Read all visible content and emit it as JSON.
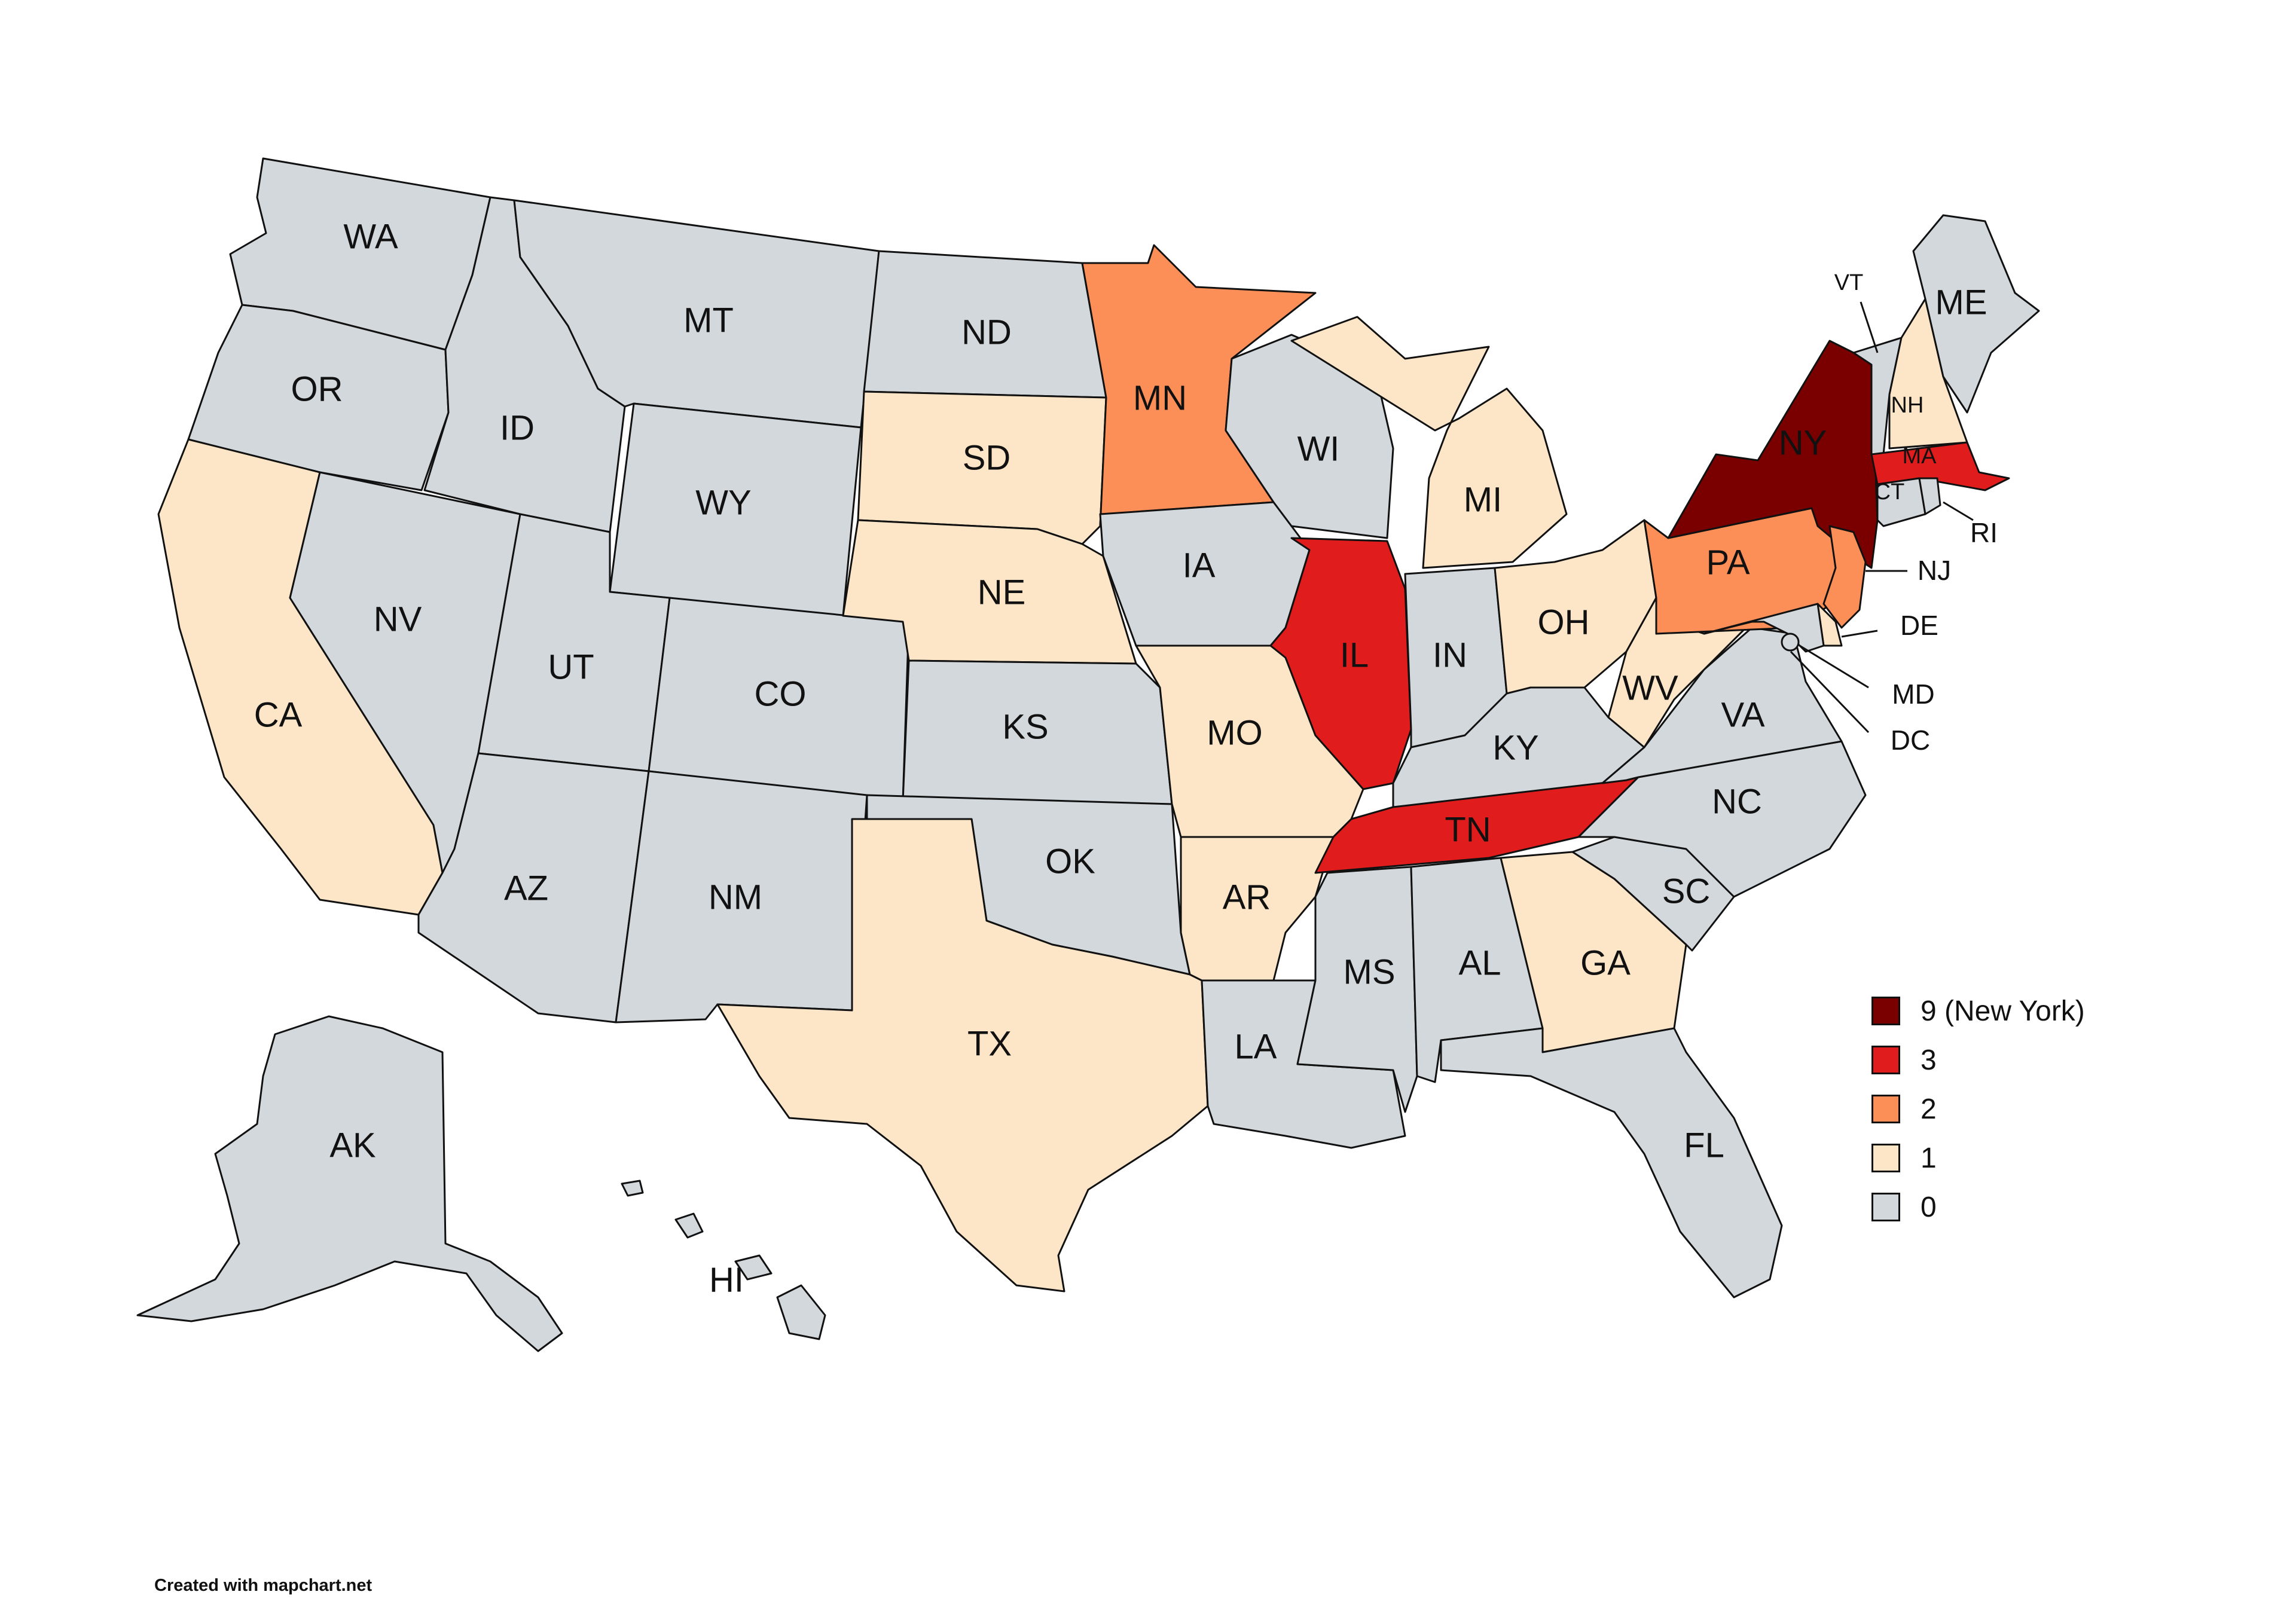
{
  "colors": {
    "c9": "#7a0000",
    "c3": "#e11c1c",
    "c2": "#fb8f57",
    "c1": "#fde6c8",
    "c0": "#d2d8dc"
  },
  "states": {
    "WA": {
      "label": "WA",
      "level": "c0"
    },
    "OR": {
      "label": "OR",
      "level": "c0"
    },
    "CA": {
      "label": "CA",
      "level": "c1"
    },
    "NV": {
      "label": "NV",
      "level": "c0"
    },
    "ID": {
      "label": "ID",
      "level": "c0"
    },
    "MT": {
      "label": "MT",
      "level": "c0"
    },
    "WY": {
      "label": "WY",
      "level": "c0"
    },
    "UT": {
      "label": "UT",
      "level": "c0"
    },
    "AZ": {
      "label": "AZ",
      "level": "c0"
    },
    "CO": {
      "label": "CO",
      "level": "c0"
    },
    "NM": {
      "label": "NM",
      "level": "c0"
    },
    "ND": {
      "label": "ND",
      "level": "c0"
    },
    "SD": {
      "label": "SD",
      "level": "c1"
    },
    "NE": {
      "label": "NE",
      "level": "c1"
    },
    "KS": {
      "label": "KS",
      "level": "c0"
    },
    "OK": {
      "label": "OK",
      "level": "c0"
    },
    "TX": {
      "label": "TX",
      "level": "c1"
    },
    "MN": {
      "label": "MN",
      "level": "c2"
    },
    "IA": {
      "label": "IA",
      "level": "c0"
    },
    "MO": {
      "label": "MO",
      "level": "c1"
    },
    "AR": {
      "label": "AR",
      "level": "c1"
    },
    "LA": {
      "label": "LA",
      "level": "c0"
    },
    "WI": {
      "label": "WI",
      "level": "c0"
    },
    "IL": {
      "label": "IL",
      "level": "c3"
    },
    "MI": {
      "label": "MI",
      "level": "c1"
    },
    "IN": {
      "label": "IN",
      "level": "c0"
    },
    "OH": {
      "label": "OH",
      "level": "c1"
    },
    "KY": {
      "label": "KY",
      "level": "c0"
    },
    "TN": {
      "label": "TN",
      "level": "c3"
    },
    "MS": {
      "label": "MS",
      "level": "c0"
    },
    "AL": {
      "label": "AL",
      "level": "c0"
    },
    "GA": {
      "label": "GA",
      "level": "c1"
    },
    "FL": {
      "label": "FL",
      "level": "c0"
    },
    "SC": {
      "label": "SC",
      "level": "c0"
    },
    "NC": {
      "label": "NC",
      "level": "c0"
    },
    "VA": {
      "label": "VA",
      "level": "c0"
    },
    "WV": {
      "label": "WV",
      "level": "c1"
    },
    "PA": {
      "label": "PA",
      "level": "c2"
    },
    "NY": {
      "label": "NY",
      "level": "c9"
    },
    "VT": {
      "label": "VT",
      "level": "c0"
    },
    "NH": {
      "label": "NH",
      "level": "c1"
    },
    "ME": {
      "label": "ME",
      "level": "c0"
    },
    "MA": {
      "label": "MA",
      "level": "c3"
    },
    "CT": {
      "label": "CT",
      "level": "c0"
    },
    "RI": {
      "label": "RI",
      "level": "c0"
    },
    "NJ": {
      "label": "NJ",
      "level": "c2"
    },
    "DE": {
      "label": "DE",
      "level": "c1"
    },
    "MD": {
      "label": "MD",
      "level": "c0"
    },
    "DC": {
      "label": "DC",
      "level": "c0"
    },
    "AK": {
      "label": "AK",
      "level": "c0"
    },
    "HI": {
      "label": "HI",
      "level": "c0"
    }
  },
  "legend": [
    {
      "label": "9 (New York)",
      "level": "c9"
    },
    {
      "label": "3",
      "level": "c3"
    },
    {
      "label": "2",
      "level": "c2"
    },
    {
      "label": "1",
      "level": "c1"
    },
    {
      "label": "0",
      "level": "c0"
    }
  ],
  "credit": "Created with mapchart.net"
}
